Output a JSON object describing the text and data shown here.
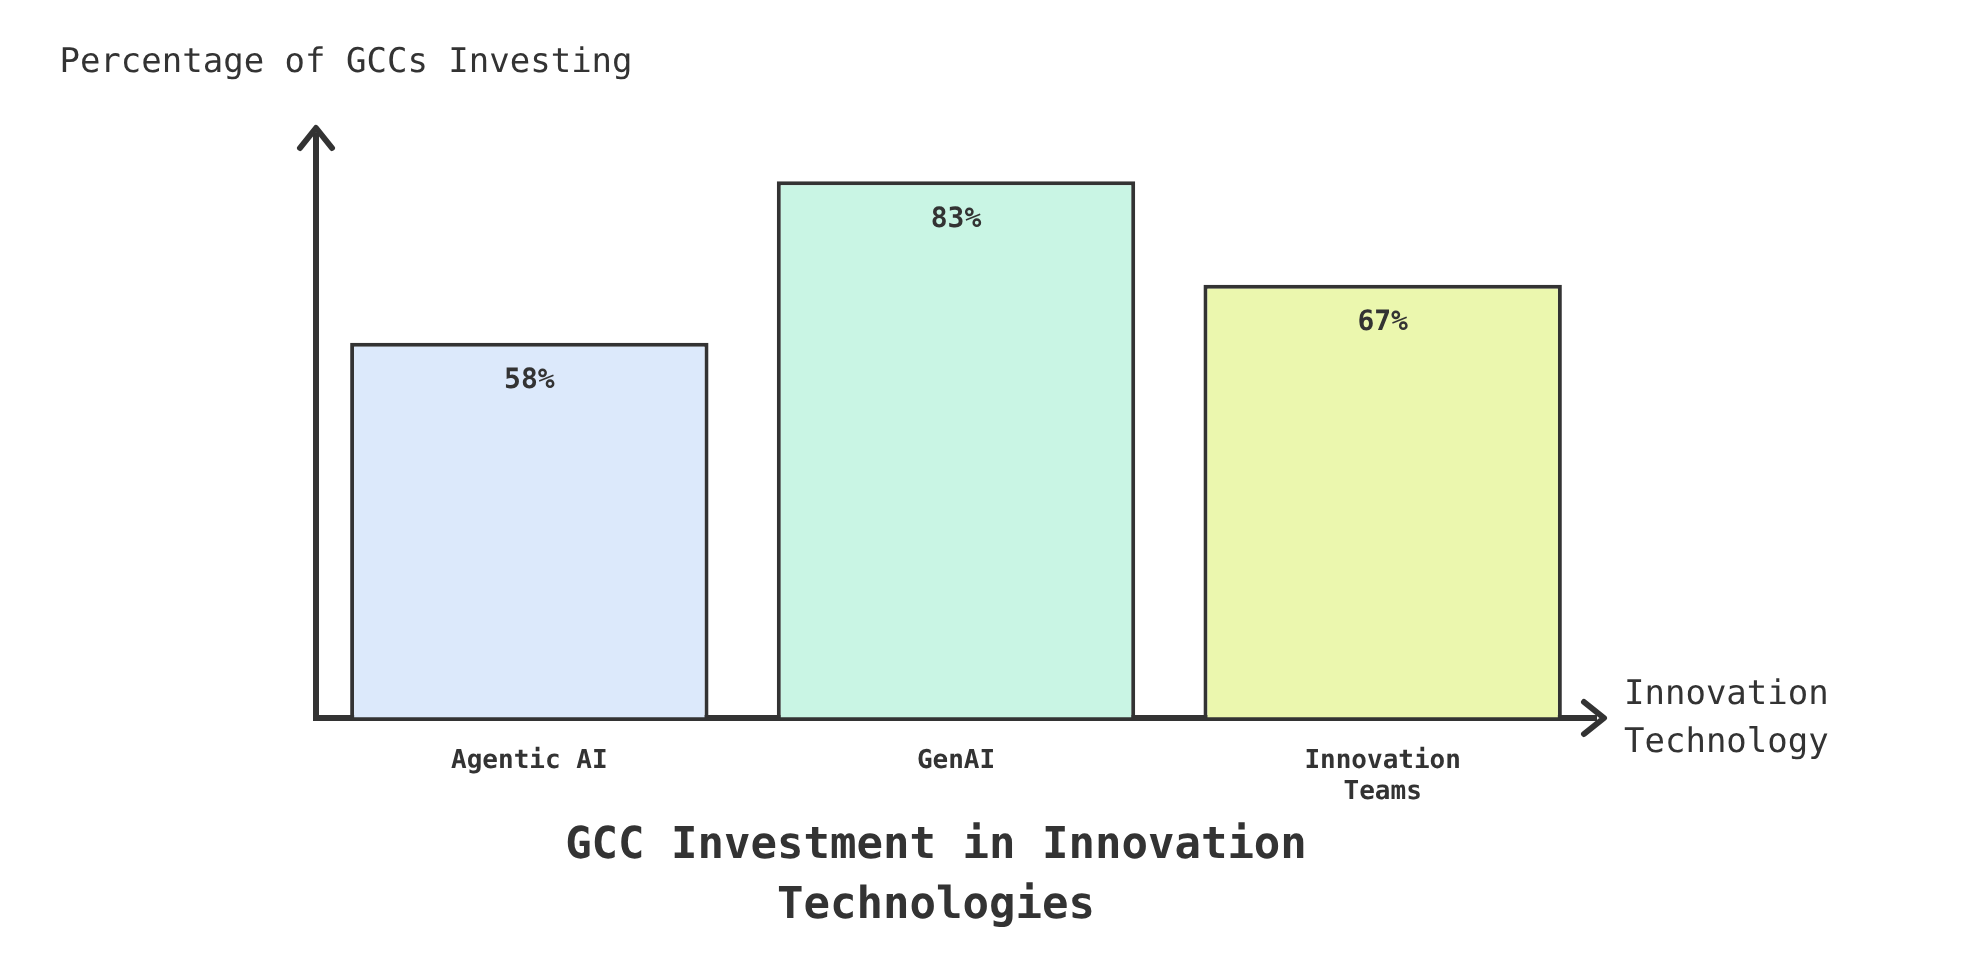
{
  "chart_data": {
    "type": "bar",
    "title": "GCC Investment in Innovation Technologies",
    "xlabel": "Innovation Technology",
    "ylabel": "Percentage of GCCs Investing",
    "categories": [
      "Agentic AI",
      "GenAI",
      "Innovation Teams"
    ],
    "values": [
      58,
      83,
      67
    ],
    "colors": [
      "#dce9fb",
      "#c9f5e4",
      "#ebf7ae"
    ],
    "value_labels": [
      "58%",
      "83%",
      "67%"
    ],
    "grid": false,
    "legend": false
  }
}
